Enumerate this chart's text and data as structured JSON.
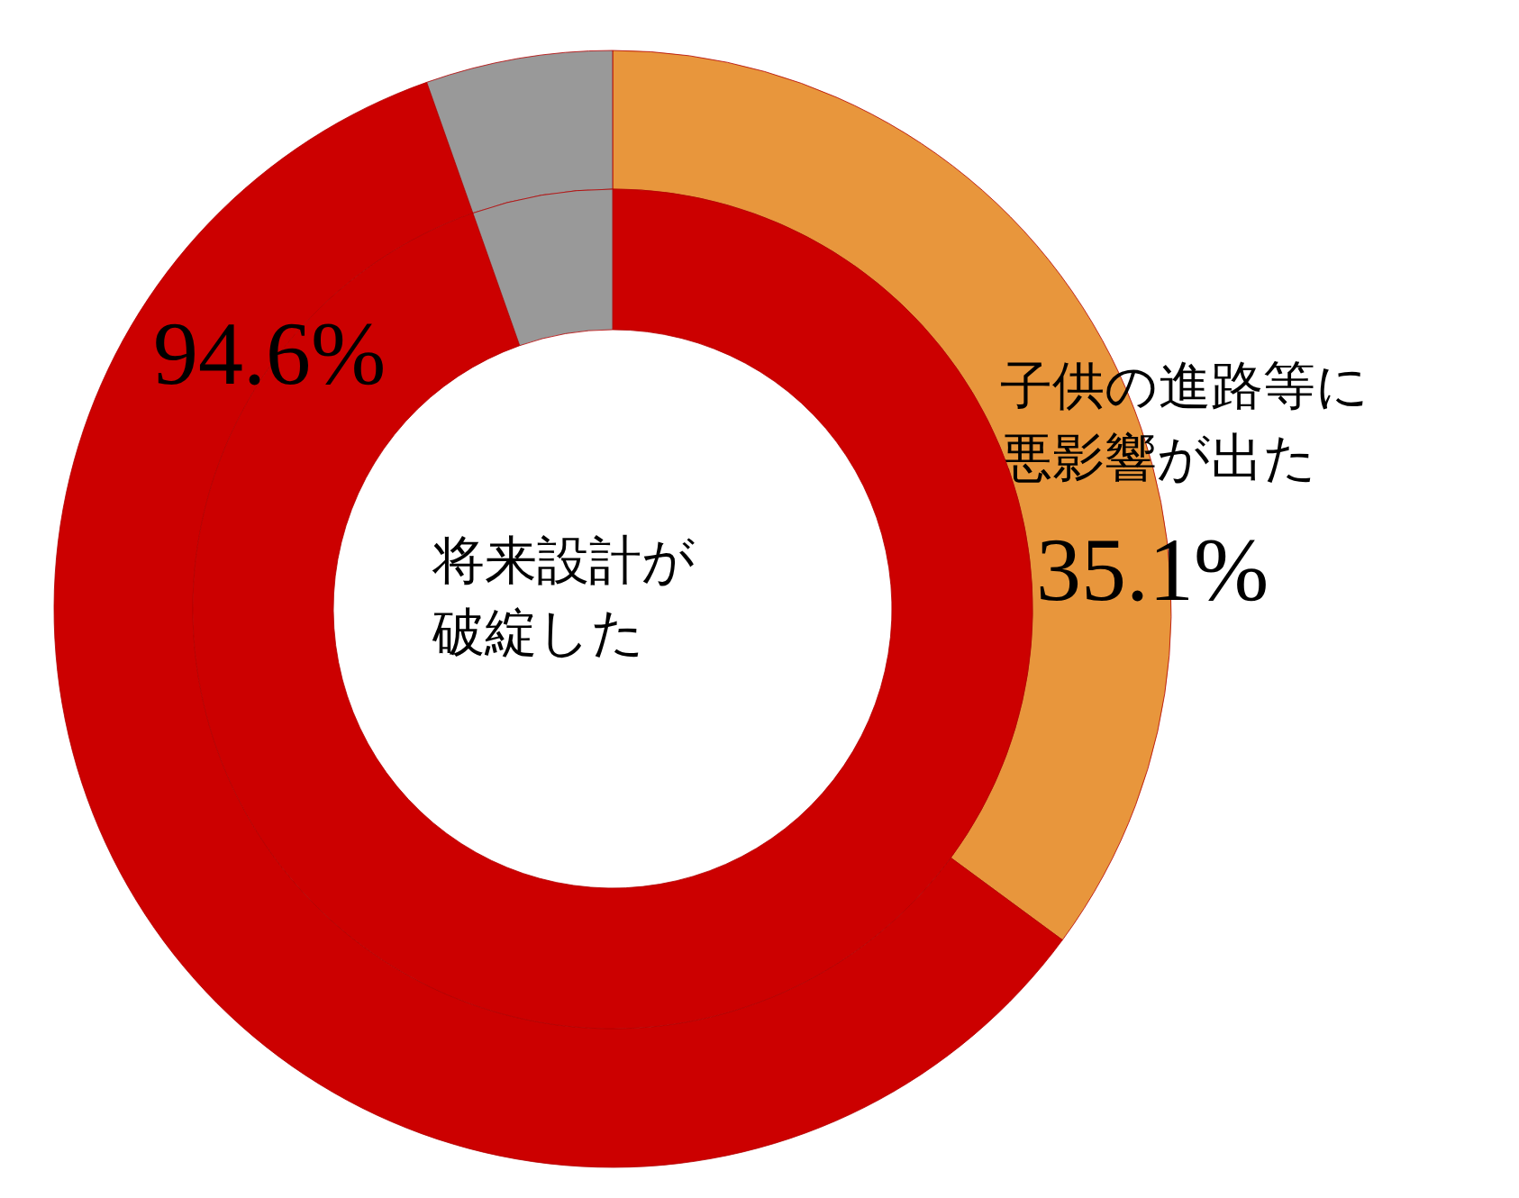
{
  "chart_data": [
    {
      "type": "donut",
      "categories": [
        "子供の進路等に悪影響が出た",
        null,
        null
      ],
      "values": [
        35.1,
        59.5,
        5.4
      ],
      "colors": [
        "#e8963c",
        "#cc0000",
        "#999999"
      ],
      "value_labels": [
        "35.1%",
        null,
        null
      ]
    },
    {
      "type": "donut",
      "categories": [
        "将来設計が破綻した",
        null
      ],
      "values": [
        94.6,
        5.4
      ],
      "colors": [
        "#cc0000",
        "#999999"
      ],
      "value_labels": [
        "94.6%",
        null
      ]
    }
  ]
}
